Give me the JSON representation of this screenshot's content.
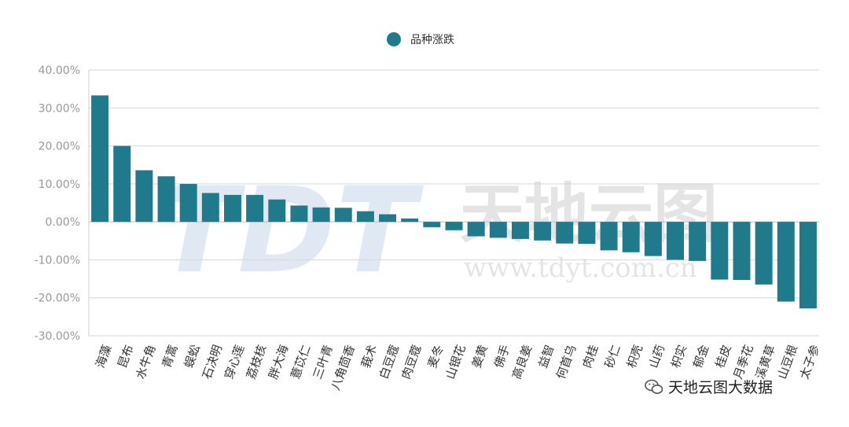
{
  "legend": {
    "label": "品种涨跌",
    "color": "#1f7a8c"
  },
  "watermark": {
    "logo_text": "TDT",
    "brand_text": "天地云图",
    "url_text": "www.tdyt.com.cn",
    "account_text": "天地云图大数据"
  },
  "chart_data": {
    "type": "bar",
    "title": "",
    "xlabel": "",
    "ylabel": "",
    "ylim": [
      -30,
      40
    ],
    "yticks": [
      40,
      30,
      20,
      10,
      0,
      -10,
      -20,
      -30
    ],
    "ytick_labels": [
      "40.00%",
      "30.00%",
      "20.00%",
      "10.00%",
      "0.00%",
      "-10.00%",
      "-20.00%",
      "-30.00%"
    ],
    "grid": true,
    "legend_position": "top-center",
    "bar_color": "#1f7a8c",
    "categories": [
      "海藻",
      "昆布",
      "水牛角",
      "青蒿",
      "蜈蚣",
      "石决明",
      "穿心莲",
      "荔枝核",
      "胖大海",
      "薏苡仁",
      "三叶青",
      "八角茴香",
      "莪术",
      "白豆蔻",
      "肉豆蔻",
      "麦冬",
      "山银花",
      "姜黄",
      "佛手",
      "高良姜",
      "益智",
      "何首乌",
      "肉桂",
      "砂仁",
      "枳壳",
      "山药",
      "枳实",
      "郁金",
      "桂皮",
      "月季花",
      "溪黄草",
      "山豆根",
      "太子参"
    ],
    "series": [
      {
        "name": "品种涨跌",
        "values": [
          33.3,
          20.0,
          13.6,
          12.0,
          10.0,
          7.6,
          7.1,
          7.1,
          5.9,
          4.3,
          3.8,
          3.7,
          2.8,
          2.0,
          0.9,
          -1.4,
          -2.2,
          -3.8,
          -4.2,
          -4.5,
          -4.9,
          -5.7,
          -5.8,
          -7.5,
          -8.0,
          -9.0,
          -10.0,
          -10.3,
          -15.2,
          -15.3,
          -16.5,
          -21.0,
          -22.8
        ]
      }
    ]
  }
}
